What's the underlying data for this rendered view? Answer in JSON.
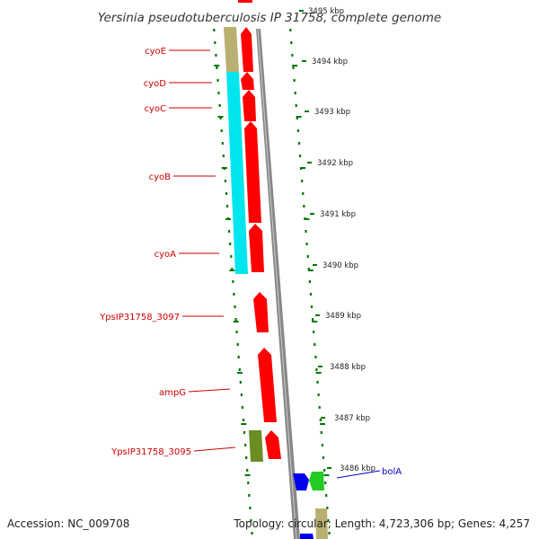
{
  "title": "Yersinia pseudotuberculosis IP 31758, complete genome",
  "footer": {
    "accession": "Accession: NC_009708",
    "summary": "Topology: circular; Length: 4,723,306 bp; Genes: 4,257"
  },
  "colors": {
    "forward_cds": "#ff0000",
    "reverse_cds": "#0000ff",
    "operon_cyo": "#00e5ee",
    "operon_other": "#b8b070",
    "olive": "#6b8e23",
    "green": "#22cc22",
    "gene_label": "#cc0000",
    "highlight_label": "#0000cc",
    "tick": "#007700",
    "backbone": "#888888"
  },
  "genes": [
    {
      "name": "cyoE",
      "start_kbp": 3494.83,
      "end_kbp": 3493.97,
      "strand": "+"
    },
    {
      "name": "cyoD",
      "start_kbp": 3493.7,
      "end_kbp": 3493.38,
      "strand": "+"
    },
    {
      "name": "cyoC",
      "start_kbp": 3493.33,
      "end_kbp": 3492.72,
      "strand": "+"
    },
    {
      "name": "cyoB",
      "start_kbp": 3492.68,
      "end_kbp": 3490.69,
      "strand": "+"
    },
    {
      "name": "cyoA",
      "start_kbp": 3490.66,
      "end_kbp": 3489.71,
      "strand": "+"
    },
    {
      "name": "YpsIP31758_3097",
      "start_kbp": 3489.48,
      "end_kbp": 3488.71,
      "strand": "+"
    },
    {
      "name": "ampG",
      "start_kbp": 3488.41,
      "end_kbp": 3486.97,
      "strand": "+"
    },
    {
      "name": "YpsIP31758_3095",
      "start_kbp": 3486.74,
      "end_kbp": 3486.22,
      "strand": "+"
    }
  ],
  "labels": [
    {
      "text": "cyoE",
      "gene": "cyoE"
    },
    {
      "text": "cyoD",
      "gene": "cyoD"
    },
    {
      "text": "cyoC",
      "gene": "cyoC"
    },
    {
      "text": "cyoB",
      "gene": "cyoB"
    },
    {
      "text": "cyoA",
      "gene": "cyoA"
    },
    {
      "text": "YpsIP31758_3097",
      "gene": "YpsIP31758_3097"
    },
    {
      "text": "ampG",
      "gene": "ampG"
    },
    {
      "text": "YpsIP31758_3095",
      "gene": "YpsIP31758_3095"
    },
    {
      "text": "bolA",
      "gene": "bolA"
    }
  ],
  "ticks": [
    "3495 kbp",
    "3494 kbp",
    "3493 kbp",
    "3492 kbp",
    "3491 kbp",
    "3490 kbp",
    "3489 kbp",
    "3488 kbp",
    "3487 kbp",
    "3486 kbp"
  ]
}
